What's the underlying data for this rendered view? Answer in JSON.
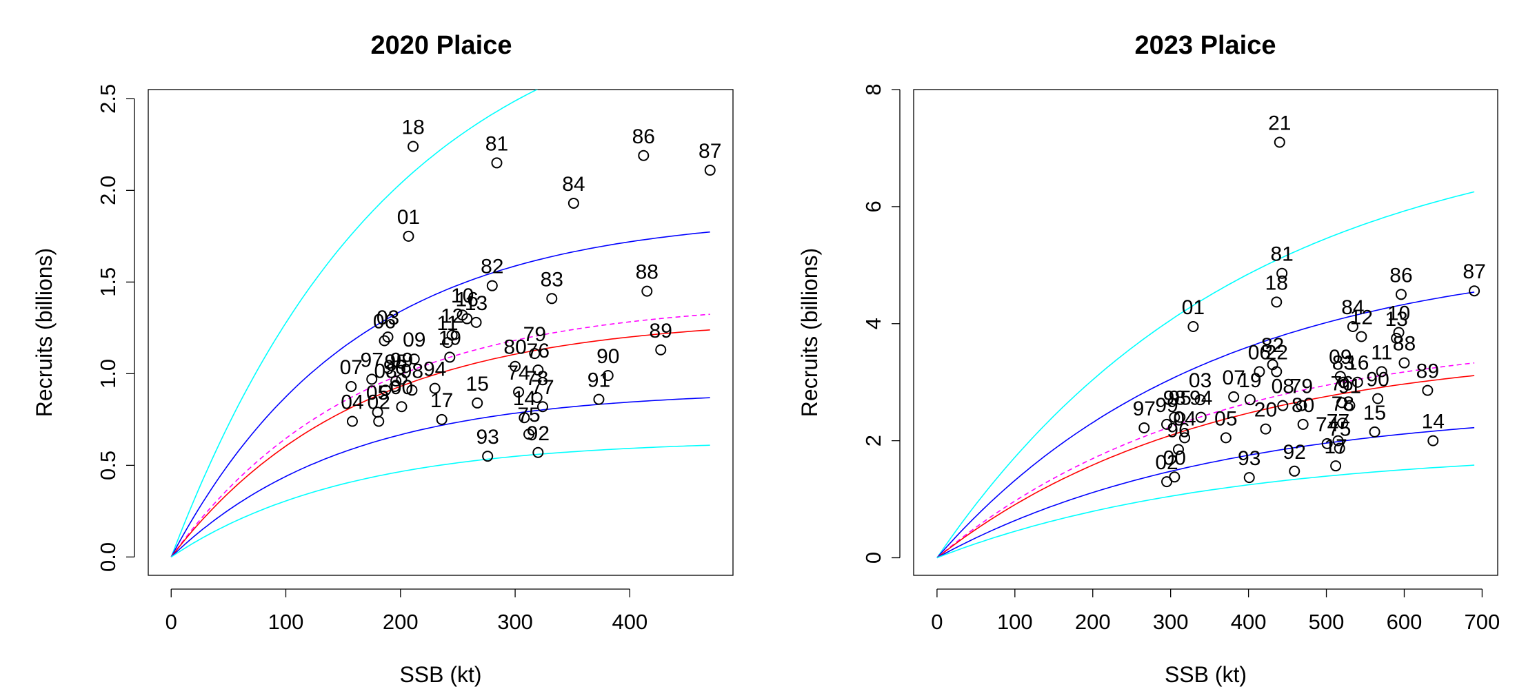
{
  "chart_data": [
    {
      "type": "scatter",
      "title": "2020 Plaice",
      "xlabel": "SSB (kt)",
      "ylabel": "Recruits (billions)",
      "xlim": [
        -20,
        490
      ],
      "ylim": [
        -0.1,
        2.55
      ],
      "xticks": [
        "0",
        "100",
        "200",
        "300",
        "400"
      ],
      "yticks": [
        "0.0",
        "0.5",
        "1.0",
        "1.5",
        "2.0",
        "2.5"
      ],
      "points": [
        {
          "label": "18",
          "x": 211,
          "y": 2.24
        },
        {
          "label": "81",
          "x": 284,
          "y": 2.15
        },
        {
          "label": "86",
          "x": 412,
          "y": 2.19
        },
        {
          "label": "87",
          "x": 470,
          "y": 2.11
        },
        {
          "label": "84",
          "x": 351,
          "y": 1.93
        },
        {
          "label": "01",
          "x": 207,
          "y": 1.75
        },
        {
          "label": "82",
          "x": 280,
          "y": 1.48
        },
        {
          "label": "88",
          "x": 415,
          "y": 1.45
        },
        {
          "label": "83",
          "x": 332,
          "y": 1.41
        },
        {
          "label": "10",
          "x": 254,
          "y": 1.32
        },
        {
          "label": "16",
          "x": 258,
          "y": 1.3
        },
        {
          "label": "13",
          "x": 266,
          "y": 1.28
        },
        {
          "label": "12",
          "x": 245,
          "y": 1.21
        },
        {
          "label": "03",
          "x": 189,
          "y": 1.2
        },
        {
          "label": "06",
          "x": 186,
          "y": 1.18
        },
        {
          "label": "11",
          "x": 241,
          "y": 1.17
        },
        {
          "label": "89",
          "x": 427,
          "y": 1.13
        },
        {
          "label": "79",
          "x": 317,
          "y": 1.11
        },
        {
          "label": "09",
          "x": 212,
          "y": 1.08
        },
        {
          "label": "19",
          "x": 243,
          "y": 1.09
        },
        {
          "label": "80",
          "x": 300,
          "y": 1.04
        },
        {
          "label": "76",
          "x": 320,
          "y": 1.02
        },
        {
          "label": "90",
          "x": 381,
          "y": 0.99
        },
        {
          "label": "07",
          "x": 157,
          "y": 0.93
        },
        {
          "label": "97",
          "x": 175,
          "y": 0.97
        },
        {
          "label": "99",
          "x": 201,
          "y": 0.97
        },
        {
          "label": "95",
          "x": 196,
          "y": 0.96
        },
        {
          "label": "94",
          "x": 230,
          "y": 0.92
        },
        {
          "label": "08",
          "x": 187,
          "y": 0.91
        },
        {
          "label": "96",
          "x": 195,
          "y": 0.93
        },
        {
          "label": "98",
          "x": 210,
          "y": 0.91
        },
        {
          "label": "74",
          "x": 303,
          "y": 0.9
        },
        {
          "label": "78",
          "x": 319,
          "y": 0.87
        },
        {
          "label": "77",
          "x": 324,
          "y": 0.82
        },
        {
          "label": "15",
          "x": 267,
          "y": 0.84
        },
        {
          "label": "91",
          "x": 373,
          "y": 0.86
        },
        {
          "label": "17",
          "x": 236,
          "y": 0.75
        },
        {
          "label": "05",
          "x": 180,
          "y": 0.79
        },
        {
          "label": "04",
          "x": 158,
          "y": 0.74
        },
        {
          "label": "14",
          "x": 308,
          "y": 0.76
        },
        {
          "label": "75",
          "x": 312,
          "y": 0.67
        },
        {
          "label": "00",
          "x": 201,
          "y": 0.82
        },
        {
          "label": "02",
          "x": 181,
          "y": 0.74
        },
        {
          "label": "93",
          "x": 276,
          "y": 0.55
        },
        {
          "label": "92",
          "x": 320,
          "y": 0.57
        }
      ],
      "curves": [
        {
          "color": "#00ffff",
          "style": "solid",
          "rmax": 3.15,
          "k": 0.0052
        },
        {
          "color": "#0000ff",
          "style": "solid",
          "rmax": 1.87,
          "k": 0.0063
        },
        {
          "color": "#ff00ff",
          "style": "dashed",
          "rmax": 1.4,
          "k": 0.0062
        },
        {
          "color": "#ff0000",
          "style": "solid",
          "rmax": 1.31,
          "k": 0.0062
        },
        {
          "color": "#0000ff",
          "style": "solid",
          "rmax": 0.91,
          "k": 0.0066
        },
        {
          "color": "#00ffff",
          "style": "solid",
          "rmax": 0.64,
          "k": 0.0065
        }
      ]
    },
    {
      "type": "scatter",
      "title": "2023 Plaice",
      "xlabel": "SSB (kt)",
      "ylabel": "Recruits (billions)",
      "xlim": [
        -30,
        720
      ],
      "ylim": [
        -0.3,
        8.0
      ],
      "xticks": [
        "0",
        "100",
        "200",
        "300",
        "400",
        "500",
        "600",
        "700"
      ],
      "yticks": [
        "0",
        "2",
        "4",
        "6",
        "8"
      ],
      "points": [
        {
          "label": "21",
          "x": 440,
          "y": 7.1
        },
        {
          "label": "81",
          "x": 443,
          "y": 4.86
        },
        {
          "label": "86",
          "x": 596,
          "y": 4.5
        },
        {
          "label": "87",
          "x": 690,
          "y": 4.56
        },
        {
          "label": "18",
          "x": 436,
          "y": 4.37
        },
        {
          "label": "01",
          "x": 329,
          "y": 3.95
        },
        {
          "label": "84",
          "x": 534,
          "y": 3.95
        },
        {
          "label": "10",
          "x": 593,
          "y": 3.85
        },
        {
          "label": "12",
          "x": 545,
          "y": 3.78
        },
        {
          "label": "13",
          "x": 590,
          "y": 3.75
        },
        {
          "label": "88",
          "x": 600,
          "y": 3.33
        },
        {
          "label": "82",
          "x": 431,
          "y": 3.3
        },
        {
          "label": "06",
          "x": 414,
          "y": 3.18
        },
        {
          "label": "22",
          "x": 436,
          "y": 3.18
        },
        {
          "label": "09",
          "x": 518,
          "y": 3.1
        },
        {
          "label": "11",
          "x": 571,
          "y": 3.18
        },
        {
          "label": "83",
          "x": 522,
          "y": 3.0
        },
        {
          "label": "16",
          "x": 540,
          "y": 3.0
        },
        {
          "label": "89",
          "x": 630,
          "y": 2.86
        },
        {
          "label": "90",
          "x": 566,
          "y": 2.72
        },
        {
          "label": "03",
          "x": 338,
          "y": 2.7
        },
        {
          "label": "07",
          "x": 381,
          "y": 2.75
        },
        {
          "label": "19",
          "x": 402,
          "y": 2.7
        },
        {
          "label": "08",
          "x": 444,
          "y": 2.6
        },
        {
          "label": "79",
          "x": 468,
          "y": 2.6
        },
        {
          "label": "97",
          "x": 266,
          "y": 2.22
        },
        {
          "label": "99",
          "x": 295,
          "y": 2.28
        },
        {
          "label": "98",
          "x": 305,
          "y": 2.4
        },
        {
          "label": "95",
          "x": 312,
          "y": 2.4
        },
        {
          "label": "94",
          "x": 339,
          "y": 2.4
        },
        {
          "label": "05",
          "x": 371,
          "y": 2.05
        },
        {
          "label": "20",
          "x": 422,
          "y": 2.2
        },
        {
          "label": "80",
          "x": 470,
          "y": 2.28
        },
        {
          "label": "76",
          "x": 520,
          "y": 2.65
        },
        {
          "label": "91",
          "x": 530,
          "y": 2.6
        },
        {
          "label": "15",
          "x": 562,
          "y": 2.15
        },
        {
          "label": "74",
          "x": 501,
          "y": 1.95
        },
        {
          "label": "77",
          "x": 515,
          "y": 2.0
        },
        {
          "label": "78",
          "x": 521,
          "y": 2.3
        },
        {
          "label": "75",
          "x": 517,
          "y": 1.87
        },
        {
          "label": "04",
          "x": 318,
          "y": 2.05
        },
        {
          "label": "96",
          "x": 310,
          "y": 1.85
        },
        {
          "label": "14",
          "x": 637,
          "y": 2.0
        },
        {
          "label": "93",
          "x": 401,
          "y": 1.37
        },
        {
          "label": "92",
          "x": 459,
          "y": 1.48
        },
        {
          "label": "02",
          "x": 295,
          "y": 1.3
        },
        {
          "label": "00",
          "x": 305,
          "y": 1.38
        },
        {
          "label": "17",
          "x": 512,
          "y": 1.57
        }
      ],
      "curves": [
        {
          "color": "#00ffff",
          "style": "solid",
          "rmax": 7.5,
          "k": 0.0026
        },
        {
          "color": "#0000ff",
          "style": "solid",
          "rmax": 5.25,
          "k": 0.0029
        },
        {
          "color": "#ff00ff",
          "style": "dashed",
          "rmax": 3.85,
          "k": 0.0029
        },
        {
          "color": "#ff0000",
          "style": "solid",
          "rmax": 3.6,
          "k": 0.0029
        },
        {
          "color": "#0000ff",
          "style": "solid",
          "rmax": 2.6,
          "k": 0.0028
        },
        {
          "color": "#00ffff",
          "style": "solid",
          "rmax": 1.85,
          "k": 0.0028
        }
      ]
    }
  ]
}
